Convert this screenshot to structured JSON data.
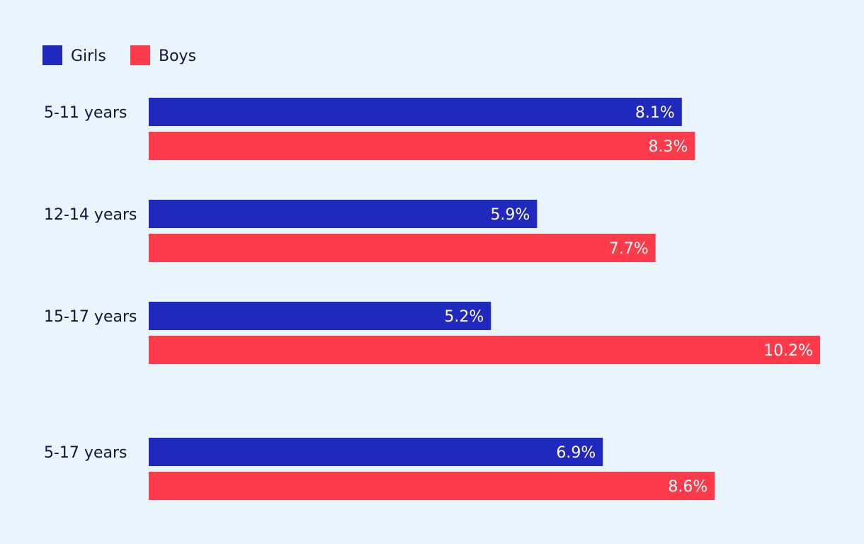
{
  "chart_data": {
    "type": "bar",
    "orientation": "horizontal",
    "categories": [
      "5-11 years",
      "12-14 years",
      "15-17 years",
      "5-17 years"
    ],
    "series": [
      {
        "name": "Girls",
        "values": [
          8.1,
          5.9,
          5.2,
          6.9
        ],
        "labels": [
          "8.1%",
          "5.9%",
          "5.2%",
          "6.9%"
        ],
        "color": "#2029bd"
      },
      {
        "name": "Boys",
        "values": [
          8.3,
          7.7,
          10.2,
          8.6
        ],
        "labels": [
          "8.3%",
          "7.7%",
          "10.2%",
          "8.6%"
        ],
        "color": "#fe3b4b"
      }
    ],
    "xlim": [
      0,
      10.2
    ],
    "grid": false,
    "legend": "top-left",
    "background": "#eaf4fc"
  }
}
